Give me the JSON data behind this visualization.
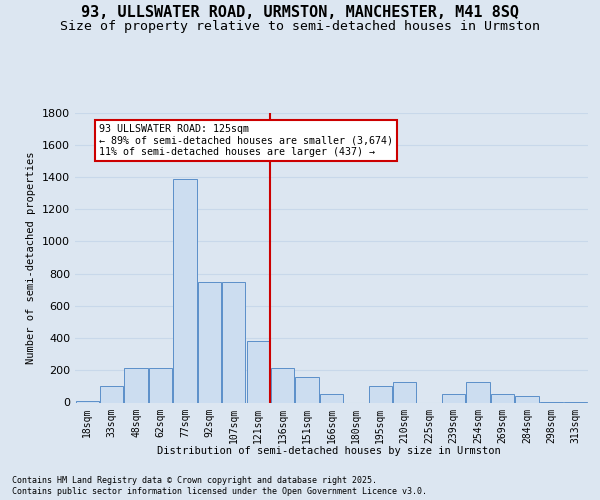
{
  "title_line1": "93, ULLSWATER ROAD, URMSTON, MANCHESTER, M41 8SQ",
  "title_line2": "Size of property relative to semi-detached houses in Urmston",
  "xlabel": "Distribution of semi-detached houses by size in Urmston",
  "ylabel": "Number of semi-detached properties",
  "footer_line1": "Contains HM Land Registry data © Crown copyright and database right 2025.",
  "footer_line2": "Contains public sector information licensed under the Open Government Licence v3.0.",
  "annotation_line1": "93 ULLSWATER ROAD: 125sqm",
  "annotation_line2": "← 89% of semi-detached houses are smaller (3,674)",
  "annotation_line3": "11% of semi-detached houses are larger (437) →",
  "categories": [
    "18sqm",
    "33sqm",
    "48sqm",
    "62sqm",
    "77sqm",
    "92sqm",
    "107sqm",
    "121sqm",
    "136sqm",
    "151sqm",
    "166sqm",
    "180sqm",
    "195sqm",
    "210sqm",
    "225sqm",
    "239sqm",
    "254sqm",
    "269sqm",
    "284sqm",
    "298sqm",
    "313sqm"
  ],
  "bar_heights": [
    10,
    100,
    215,
    215,
    1390,
    750,
    750,
    380,
    215,
    160,
    50,
    0,
    100,
    130,
    0,
    55,
    130,
    55,
    40,
    5,
    5
  ],
  "bar_color": "#ccddf0",
  "bar_edge_color": "#5b8fc9",
  "vline_color": "#cc0000",
  "vline_x": 7.5,
  "ylim": [
    0,
    1800
  ],
  "yticks": [
    0,
    200,
    400,
    600,
    800,
    1000,
    1200,
    1400,
    1600,
    1800
  ],
  "bg_color": "#dce6f1",
  "grid_color": "#c8d8ea",
  "title_fontsize": 11,
  "subtitle_fontsize": 9.5
}
